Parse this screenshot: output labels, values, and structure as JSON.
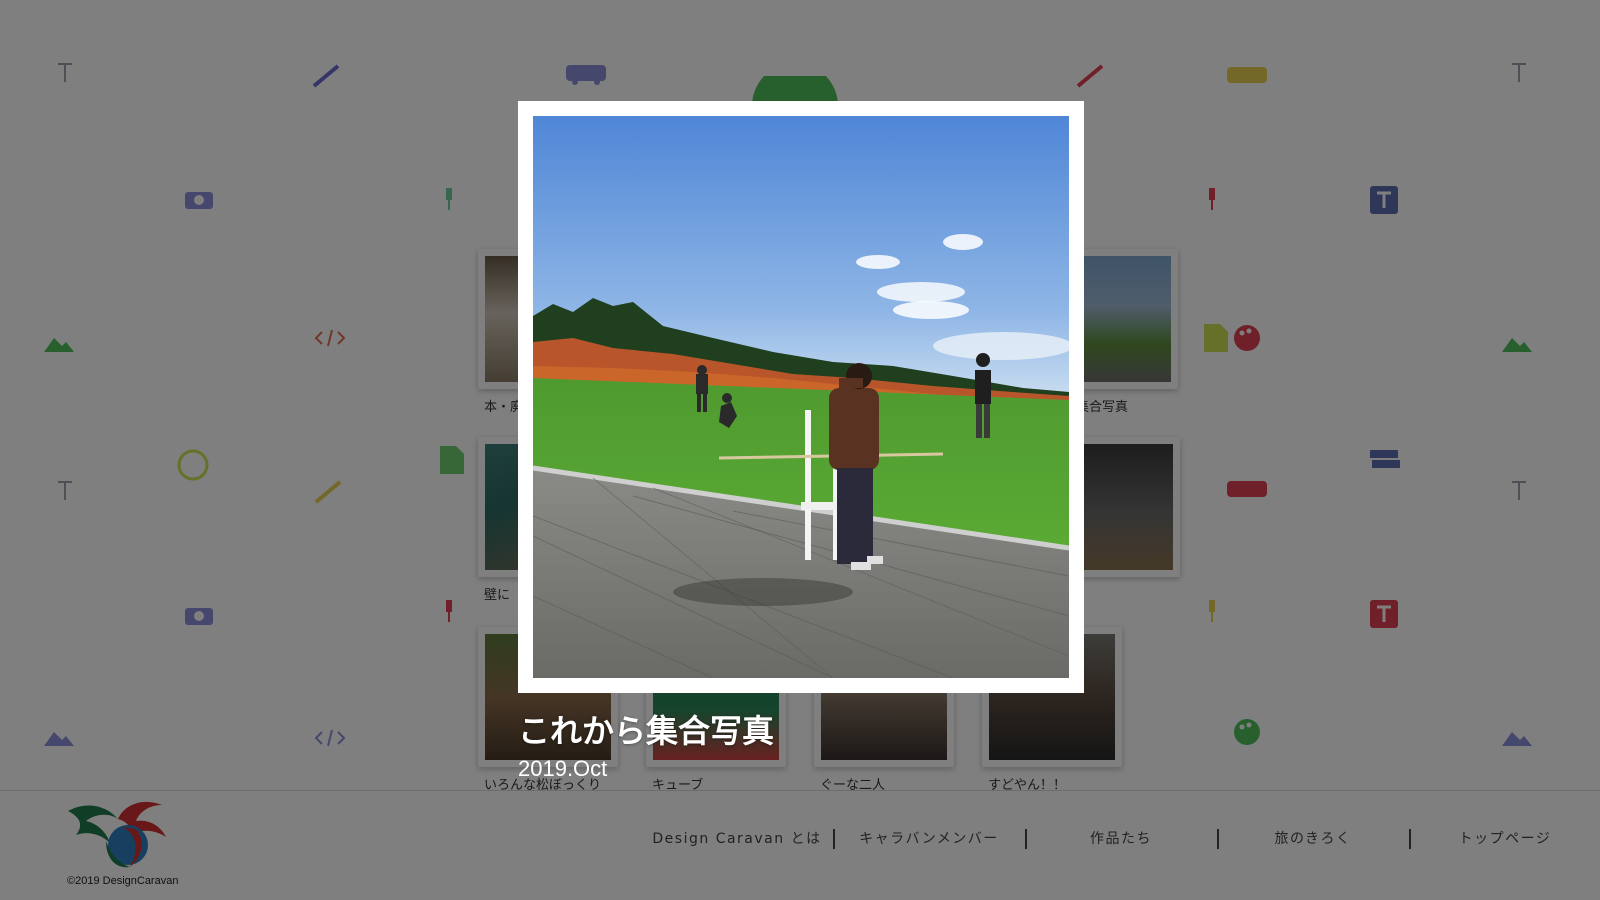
{
  "gallery": {
    "items": [
      {
        "caption": "本・廃",
        "thumb_icon": "book-stack-photo"
      },
      {
        "caption": "集合写真",
        "thumb_icon": "field-photo"
      },
      {
        "caption": "壁に",
        "thumb_icon": "teal-chair-photo"
      },
      {
        "caption": "",
        "thumb_icon": "dark-room-photo"
      },
      {
        "caption": "いろんな松ぼっくり",
        "thumb_icon": "pinecone-photo"
      },
      {
        "caption": "キューブ",
        "thumb_icon": "rubiks-cube-photo"
      },
      {
        "caption": "ぐーな二人",
        "thumb_icon": "food-table-photo"
      },
      {
        "caption": "すどやん！！",
        "thumb_icon": "person-photo"
      }
    ]
  },
  "modal": {
    "title": "これから集合写真",
    "date": "2019.Oct",
    "photo_icon": "group-photo-field"
  },
  "footer": {
    "copyright": "©2019 DesignCaravan",
    "nav": [
      {
        "label": "Design Caravan とは"
      },
      {
        "label": "キャラバンメンバー"
      },
      {
        "label": "作品たち"
      },
      {
        "label": "旅のきろく"
      },
      {
        "label": "トップページ"
      }
    ]
  },
  "colors": {
    "overlay": "#00000080",
    "logo_green": "#1f7a4a",
    "logo_red": "#d03030",
    "logo_blue": "#2f7fc0"
  }
}
